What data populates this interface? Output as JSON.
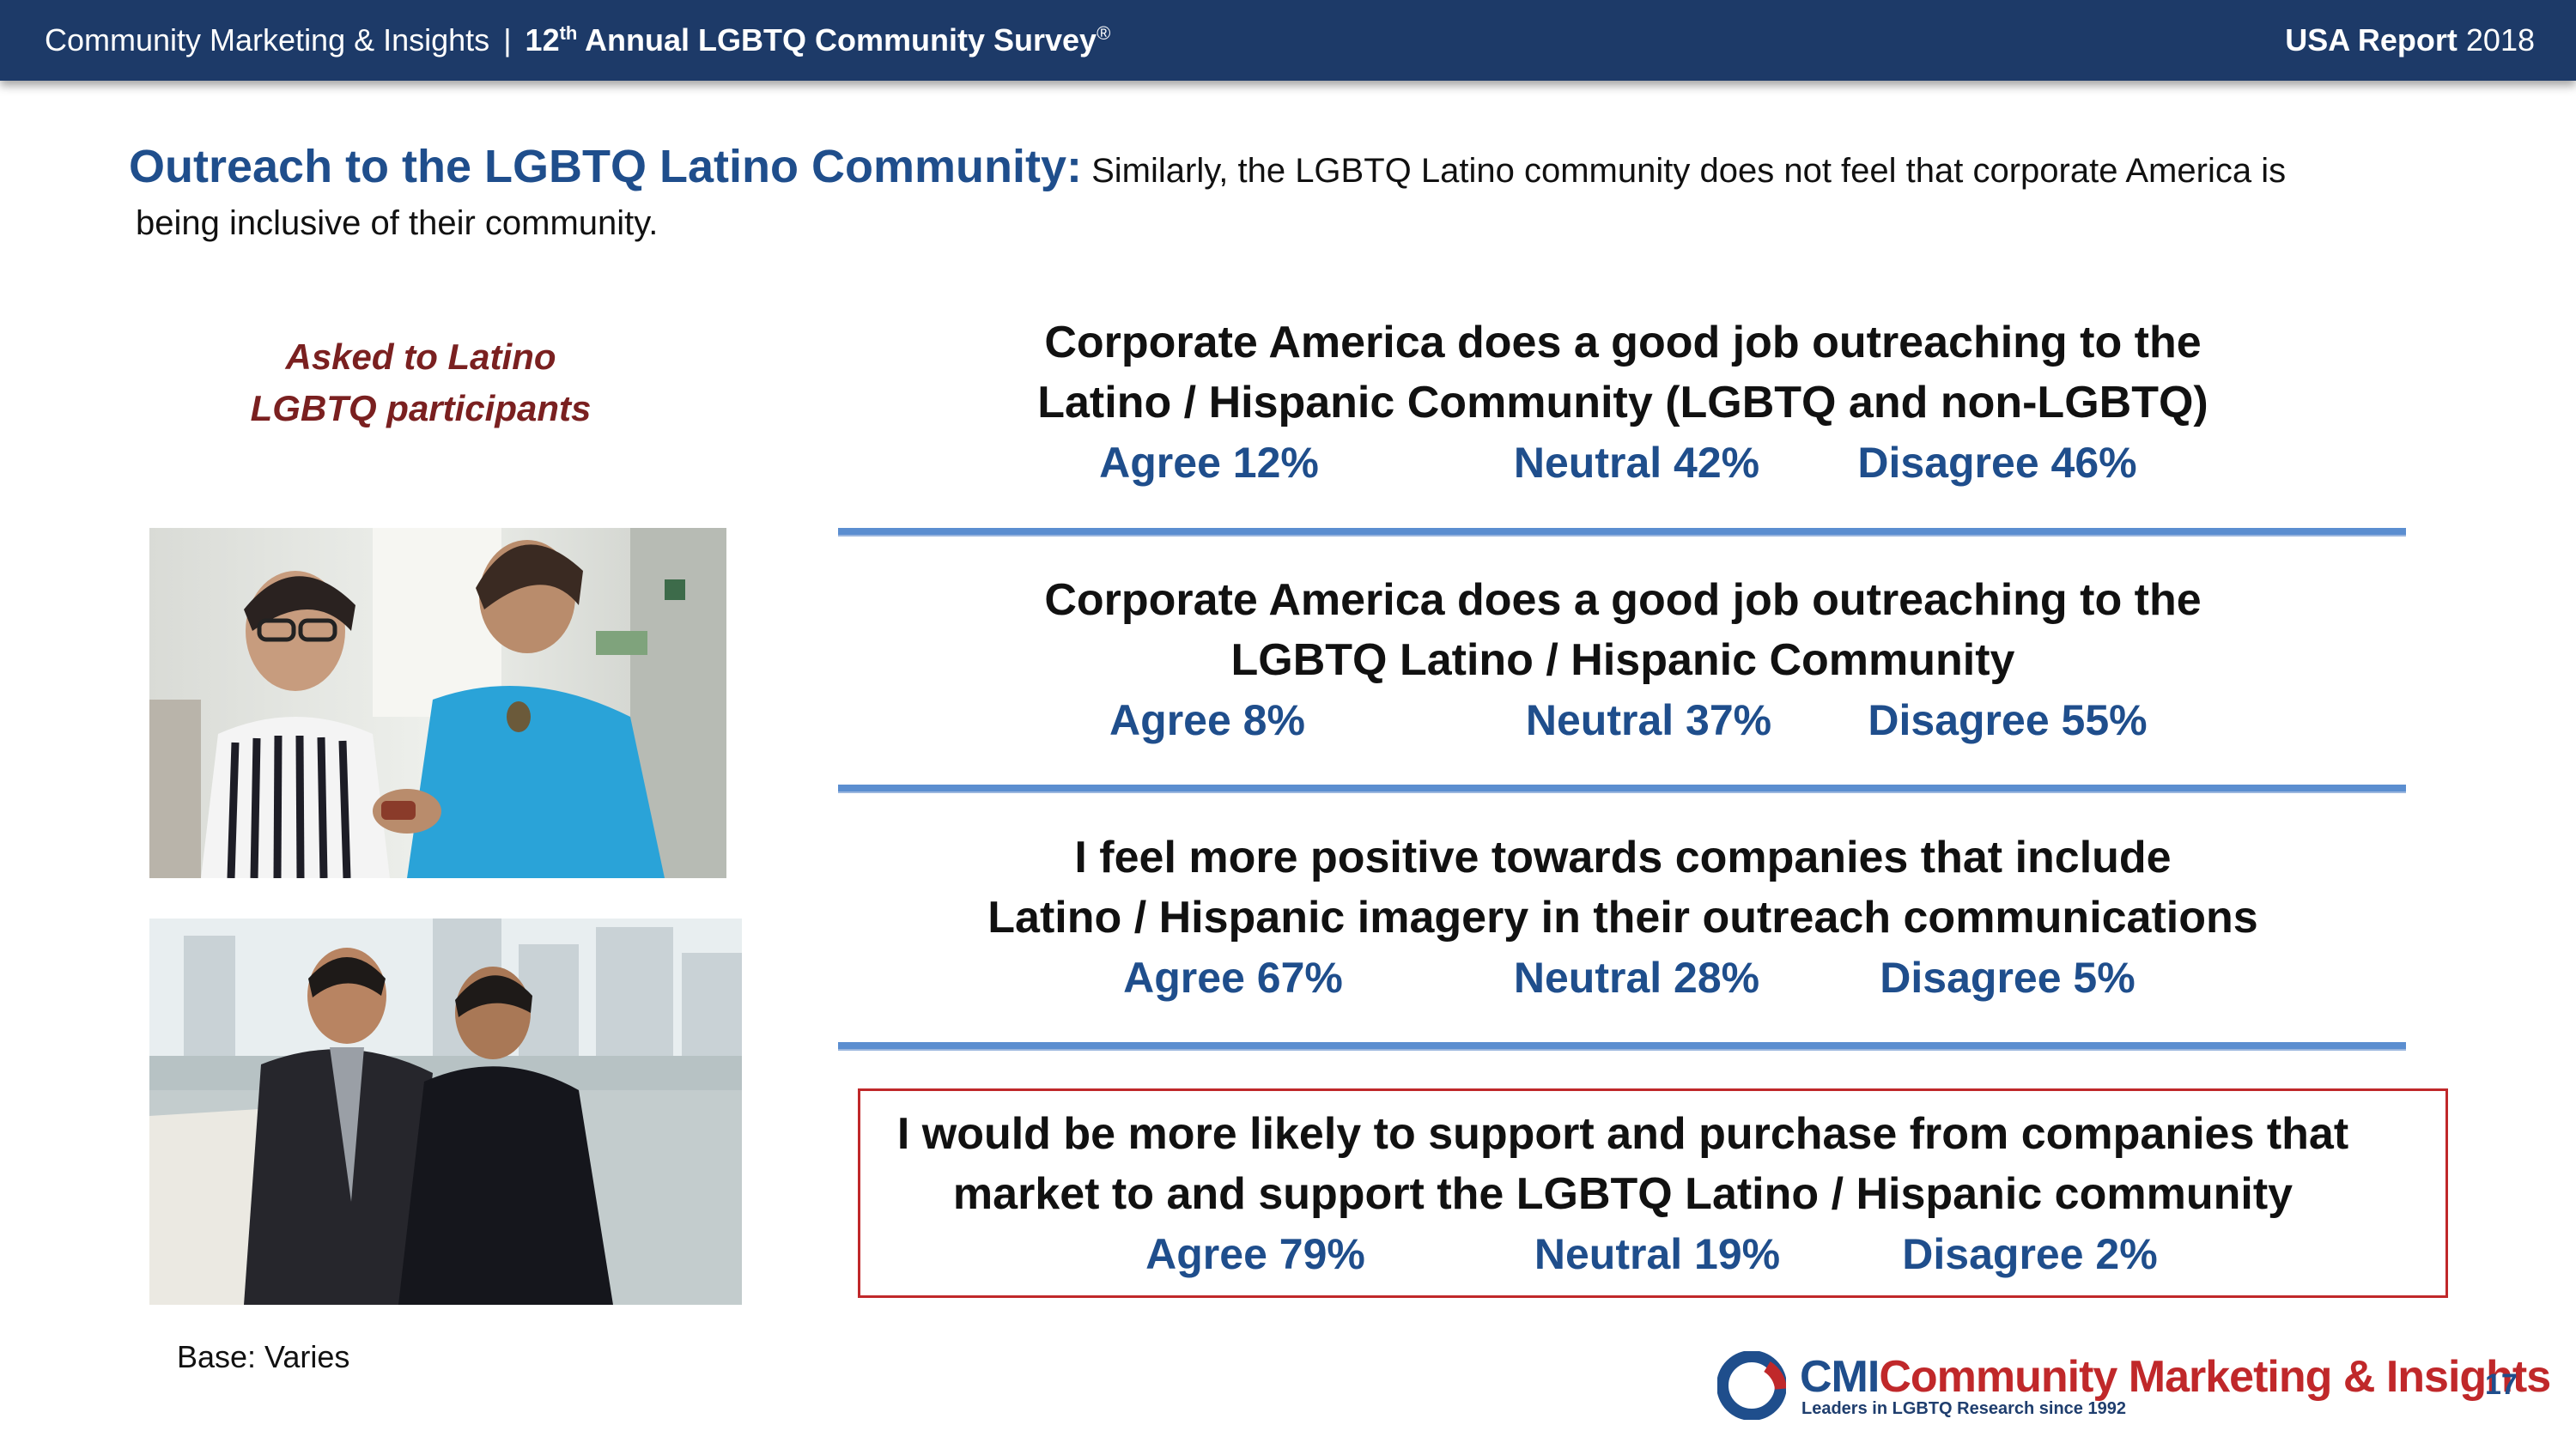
{
  "header": {
    "org": "Community Marketing & Insights",
    "separator": "|",
    "survey_number": "12",
    "survey_suffix": "th",
    "survey_title": " Annual LGBTQ Community Survey",
    "registered_mark": "®",
    "report_label": "USA Report",
    "report_year": "2018"
  },
  "title": {
    "lead": "Outreach to the LGBTQ Latino Community:",
    "desc_line1": " Similarly, the LGBTQ Latino community does not feel that corporate America is",
    "desc_line2": "being inclusive of their community."
  },
  "sidebar": {
    "asked_line1": "Asked to Latino",
    "asked_line2": "LGBTQ participants"
  },
  "statements": [
    {
      "line1": "Corporate America does a good job outreaching to the",
      "line2": "Latino / Hispanic Community  (LGBTQ and non-LGBTQ)",
      "agree": "Agree 12%",
      "neutral": "Neutral 42%",
      "disagree": "Disagree  46%"
    },
    {
      "line1": "Corporate America does a good job outreaching to the",
      "line2": "LGBTQ Latino / Hispanic Community",
      "agree": "Agree 8%",
      "neutral": "Neutral 37%",
      "disagree": "Disagree  55%"
    },
    {
      "line1": "I feel more positive towards companies that include",
      "line2": "Latino / Hispanic imagery in their outreach communications",
      "agree": "Agree 67%",
      "neutral": "Neutral 28%",
      "disagree": "Disagree  5%"
    },
    {
      "line1": "I would be more likely to support and purchase from companies that",
      "line2": "market to and support the LGBTQ  Latino / Hispanic community",
      "agree": "Agree 79%",
      "neutral": "Neutral 19%",
      "disagree": "Disagree  2%"
    }
  ],
  "footer": {
    "base": "Base: Varies",
    "logo_cmi": "CMI",
    "logo_name": "Community Marketing & Insights",
    "logo_tagline": "Leaders in LGBTQ Research since 1992",
    "page_number": "17"
  },
  "colors": {
    "header_bg": "#1d3a68",
    "accent_blue": "#1f4e8c",
    "accent_red": "#c0282a",
    "divider_blue": "#5b8ed0"
  }
}
